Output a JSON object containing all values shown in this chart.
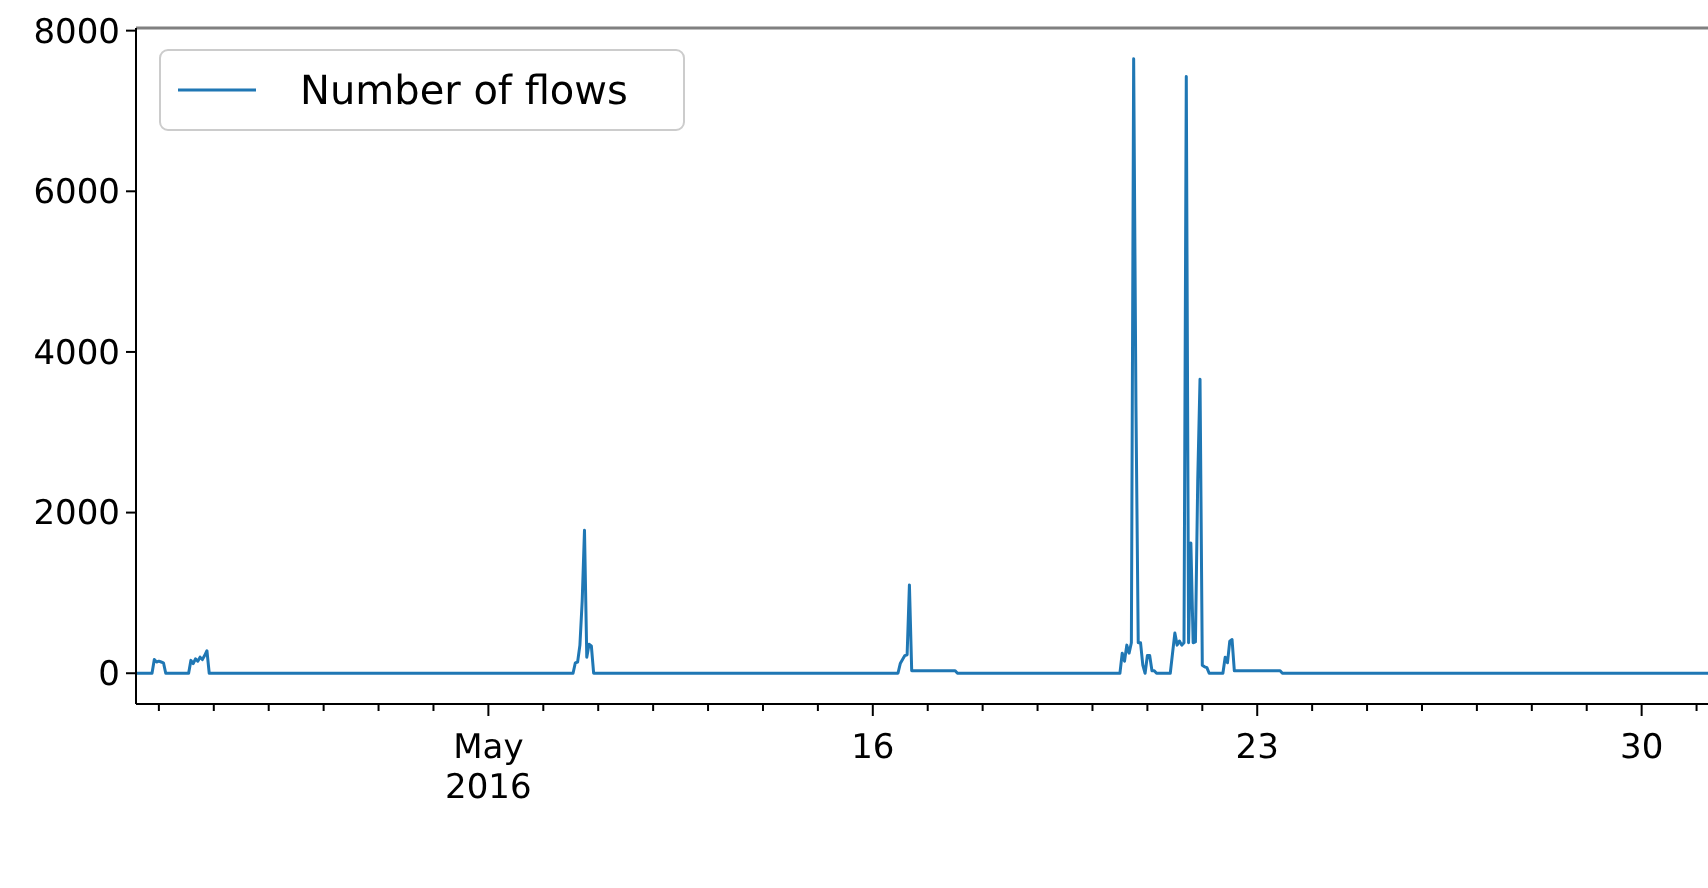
{
  "chart_data": {
    "type": "line",
    "legend": "top left",
    "ylim": [
      -383,
      8033
    ],
    "yticks": [
      0,
      2000,
      4000,
      6000,
      8000
    ],
    "xlim": [
      "2016-05-02T14:00",
      "2016-05-31T05:00"
    ],
    "xticks": [
      {
        "value": "2016-05-03",
        "label": null
      },
      {
        "value": "2016-05-04",
        "label": null
      },
      {
        "value": "2016-05-05",
        "label": null
      },
      {
        "value": "2016-05-06",
        "label": null
      },
      {
        "value": "2016-05-07",
        "label": null
      },
      {
        "value": "2016-05-08",
        "label": null
      },
      {
        "value": "2016-05-09",
        "label": "May\n2016"
      },
      {
        "value": "2016-05-10",
        "label": null
      },
      {
        "value": "2016-05-11",
        "label": null
      },
      {
        "value": "2016-05-12",
        "label": null
      },
      {
        "value": "2016-05-13",
        "label": null
      },
      {
        "value": "2016-05-14",
        "label": null
      },
      {
        "value": "2016-05-15",
        "label": null
      },
      {
        "value": "2016-05-16",
        "label": "16"
      },
      {
        "value": "2016-05-17",
        "label": null
      },
      {
        "value": "2016-05-18",
        "label": null
      },
      {
        "value": "2016-05-19",
        "label": null
      },
      {
        "value": "2016-05-20",
        "label": null
      },
      {
        "value": "2016-05-21",
        "label": null
      },
      {
        "value": "2016-05-22",
        "label": null
      },
      {
        "value": "2016-05-23",
        "label": "23"
      },
      {
        "value": "2016-05-24",
        "label": null
      },
      {
        "value": "2016-05-25",
        "label": null
      },
      {
        "value": "2016-05-26",
        "label": null
      },
      {
        "value": "2016-05-27",
        "label": null
      },
      {
        "value": "2016-05-28",
        "label": null
      },
      {
        "value": "2016-05-29",
        "label": null
      },
      {
        "value": "2016-05-30",
        "label": "30"
      },
      {
        "value": "2016-05-31",
        "label": null
      }
    ],
    "x": [
      "2016-05-02T14:00",
      "2016-05-02T21:00",
      "2016-05-02T22:00",
      "2016-05-02T23:00",
      "2016-05-03T00:00",
      "2016-05-03T01:00",
      "2016-05-03T02:00",
      "2016-05-03T03:00",
      "2016-05-03T13:00",
      "2016-05-03T14:00",
      "2016-05-03T15:00",
      "2016-05-03T16:00",
      "2016-05-03T17:00",
      "2016-05-03T18:00",
      "2016-05-03T19:00",
      "2016-05-03T20:00",
      "2016-05-03T21:00",
      "2016-05-03T22:00",
      "2016-05-10T13:00",
      "2016-05-10T14:00",
      "2016-05-10T15:00",
      "2016-05-10T16:00",
      "2016-05-10T17:00",
      "2016-05-10T18:00",
      "2016-05-10T19:00",
      "2016-05-10T20:00",
      "2016-05-10T21:00",
      "2016-05-10T22:00",
      "2016-05-16T11:00",
      "2016-05-16T12:00",
      "2016-05-16T13:00",
      "2016-05-16T14:00",
      "2016-05-16T15:00",
      "2016-05-16T16:00",
      "2016-05-16T17:00",
      "2016-05-17T12:00",
      "2016-05-17T13:00",
      "2016-05-20T12:00",
      "2016-05-20T13:00",
      "2016-05-20T14:00",
      "2016-05-20T15:00",
      "2016-05-20T16:00",
      "2016-05-20T17:00",
      "2016-05-20T18:00",
      "2016-05-20T19:00",
      "2016-05-20T20:00",
      "2016-05-20T21:00",
      "2016-05-20T22:00",
      "2016-05-20T23:00",
      "2016-05-21T00:00",
      "2016-05-21T01:00",
      "2016-05-21T02:00",
      "2016-05-21T03:00",
      "2016-05-21T04:00",
      "2016-05-21T10:00",
      "2016-05-21T11:00",
      "2016-05-21T12:00",
      "2016-05-21T13:00",
      "2016-05-21T14:00",
      "2016-05-21T15:00",
      "2016-05-21T16:00",
      "2016-05-21T17:00",
      "2016-05-21T18:00",
      "2016-05-21T19:00",
      "2016-05-21T20:00",
      "2016-05-21T21:00",
      "2016-05-21T22:00",
      "2016-05-21T23:00",
      "2016-05-22T00:00",
      "2016-05-22T01:00",
      "2016-05-22T02:00",
      "2016-05-22T03:00",
      "2016-05-22T09:00",
      "2016-05-22T10:00",
      "2016-05-22T11:00",
      "2016-05-22T12:00",
      "2016-05-22T13:00",
      "2016-05-22T14:00",
      "2016-05-23T10:00",
      "2016-05-23T11:00",
      "2016-05-31T05:00"
    ],
    "series": [
      {
        "name": "Number of flows",
        "color": "#1f77b4",
        "values": [
          0,
          0,
          170,
          140,
          150,
          140,
          130,
          0,
          0,
          160,
          120,
          180,
          150,
          200,
          170,
          220,
          280,
          0,
          0,
          130,
          140,
          350,
          900,
          1780,
          200,
          360,
          340,
          0,
          0,
          120,
          170,
          220,
          230,
          1100,
          30,
          30,
          0,
          0,
          250,
          150,
          350,
          250,
          380,
          7650,
          3330,
          380,
          380,
          100,
          0,
          220,
          220,
          30,
          30,
          0,
          0,
          250,
          500,
          350,
          400,
          350,
          380,
          7430,
          380,
          1620,
          380,
          390,
          2400,
          3660,
          100,
          80,
          70,
          0,
          0,
          200,
          130,
          400,
          420,
          30,
          30,
          0,
          0
        ]
      }
    ]
  }
}
